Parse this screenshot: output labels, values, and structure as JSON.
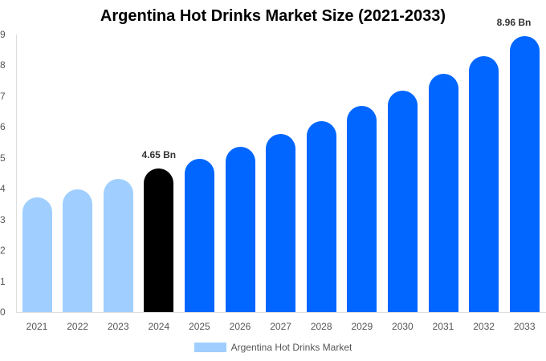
{
  "chart_data": {
    "type": "bar",
    "title": "Argentina Hot Drinks Market Size (2021-2033)",
    "xlabel": "",
    "ylabel": "",
    "ylim": [
      0,
      9
    ],
    "yticks": [
      "0",
      "1",
      "2",
      "3",
      "4",
      "5",
      "6",
      "7",
      "8",
      "9"
    ],
    "grid": false,
    "legend_position": "bottom",
    "categories": [
      "2021",
      "2022",
      "2023",
      "2024",
      "2025",
      "2026",
      "2027",
      "2028",
      "2029",
      "2030",
      "2031",
      "2032",
      "2033"
    ],
    "series": [
      {
        "name": "Argentina Hot Drinks Market",
        "values": [
          3.72,
          3.98,
          4.32,
          4.65,
          4.97,
          5.36,
          5.78,
          6.2,
          6.69,
          7.19,
          7.73,
          8.31,
          8.96
        ]
      }
    ],
    "bar_colors": [
      "#a0cfff",
      "#a0cfff",
      "#a0cfff",
      "#000000",
      "#0066ff",
      "#0066ff",
      "#0066ff",
      "#0066ff",
      "#0066ff",
      "#0066ff",
      "#0066ff",
      "#0066ff",
      "#0066ff"
    ],
    "annotations": [
      {
        "index": 3,
        "text": "4.65 Bn"
      },
      {
        "index": 12,
        "text": "8.96 Bn"
      }
    ]
  },
  "legend": {
    "label": "Argentina Hot Drinks Market",
    "color": "#a0cfff"
  }
}
